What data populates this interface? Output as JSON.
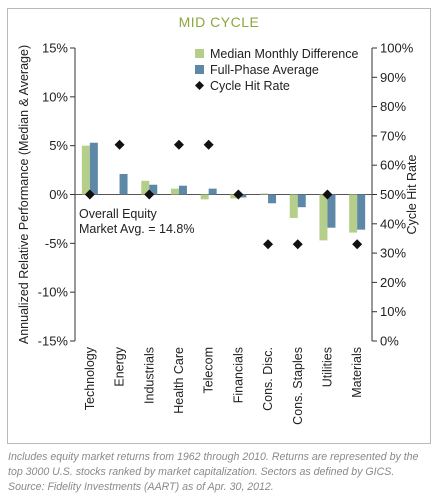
{
  "chart_data": {
    "type": "bar",
    "title": "MID CYCLE",
    "ylabel_left": "Annualized Relative Performance (Median & Average)",
    "ylabel_right": "Cycle Hit Rate",
    "ylim_left": [
      -15,
      15
    ],
    "ylim_right": [
      0,
      100
    ],
    "left_ticks": [
      "15%",
      "10%",
      "5%",
      "0%",
      "-5%",
      "-10%",
      "-15%"
    ],
    "right_ticks": [
      "100%",
      "90%",
      "80%",
      "70%",
      "60%",
      "50%",
      "40%",
      "30%",
      "20%",
      "10%",
      "0%"
    ],
    "categories": [
      "Technology",
      "Energy",
      "Industrials",
      "Health Care",
      "Telecom",
      "Financials",
      "Cons. Disc.",
      "Cons. Staples",
      "Utilities",
      "Materials"
    ],
    "series": [
      {
        "name": "Median Monthly Difference",
        "axis": "left",
        "color": "#b5cf8a",
        "values": [
          5.0,
          0.0,
          1.4,
          0.6,
          -0.5,
          -0.4,
          0.1,
          -2.4,
          -4.7,
          -3.9
        ]
      },
      {
        "name": "Full-Phase Average",
        "axis": "left",
        "color": "#5e88a8",
        "values": [
          5.3,
          2.1,
          1.0,
          0.9,
          0.6,
          -0.3,
          -0.9,
          -1.3,
          -3.4,
          -3.6
        ]
      },
      {
        "name": "Cycle Hit Rate",
        "axis": "right",
        "color": "#111111",
        "marker": "diamond",
        "values": [
          50,
          67,
          50,
          67,
          67,
          50,
          33,
          33,
          50,
          33
        ]
      }
    ],
    "annotation": [
      "Overall Equity",
      "Market Avg. = 14.8%"
    ],
    "legend_position": "top-right",
    "grid": false
  },
  "footnote": "Includes equity market returns from 1962 through 2010. Returns are represented by the top 3000 U.S. stocks ranked by market capitalization. Sectors as defined by GICS. Source: Fidelity Investments (AART) as of Apr. 30, 2012."
}
